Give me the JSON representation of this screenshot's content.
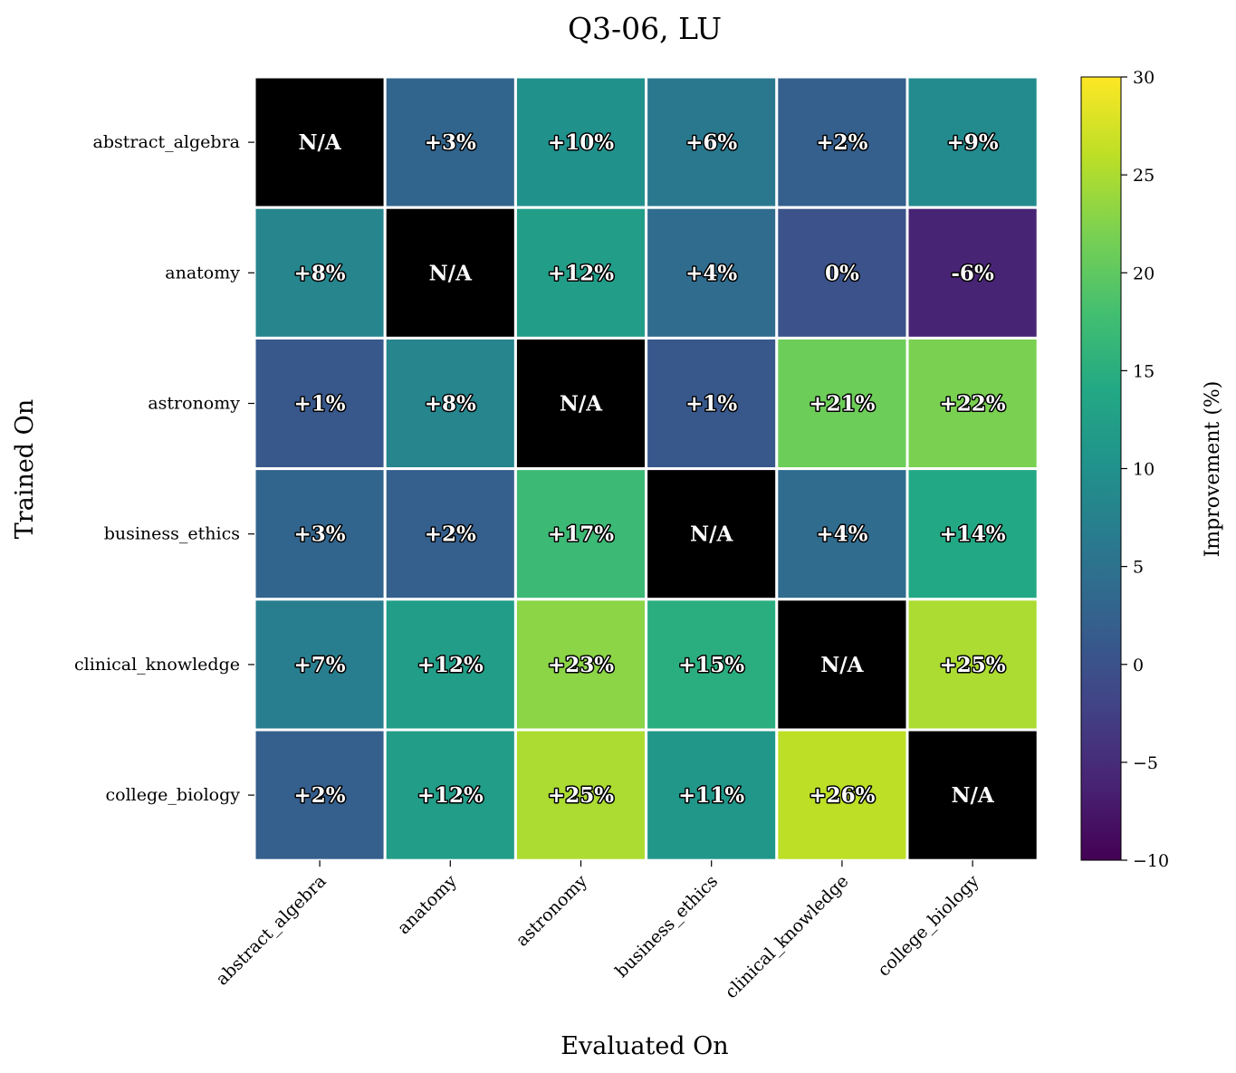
{
  "chart_data": {
    "type": "heatmap",
    "title": "Q3-06, LU",
    "xlabel": "Evaluated On",
    "ylabel": "Trained On",
    "rows": [
      "abstract_algebra",
      "anatomy",
      "astronomy",
      "business_ethics",
      "clinical_knowledge",
      "college_biology"
    ],
    "columns": [
      "abstract_algebra",
      "anatomy",
      "astronomy",
      "business_ethics",
      "clinical_knowledge",
      "college_biology"
    ],
    "values": [
      [
        null,
        3,
        10,
        6,
        2,
        9
      ],
      [
        8,
        null,
        12,
        4,
        0,
        -6
      ],
      [
        1,
        8,
        null,
        1,
        21,
        22
      ],
      [
        3,
        2,
        17,
        null,
        4,
        14
      ],
      [
        7,
        12,
        23,
        15,
        null,
        25
      ],
      [
        2,
        12,
        25,
        11,
        26,
        null
      ]
    ],
    "labels": [
      [
        "N/A",
        "+3%",
        "+10%",
        "+6%",
        "+2%",
        "+9%"
      ],
      [
        "+8%",
        "N/A",
        "+12%",
        "+4%",
        "0%",
        "-6%"
      ],
      [
        "+1%",
        "+8%",
        "N/A",
        "+1%",
        "+21%",
        "+22%"
      ],
      [
        "+3%",
        "+2%",
        "+17%",
        "N/A",
        "+4%",
        "+14%"
      ],
      [
        "+7%",
        "+12%",
        "+23%",
        "+15%",
        "N/A",
        "+25%"
      ],
      [
        "+2%",
        "+12%",
        "+25%",
        "+11%",
        "+26%",
        "N/A"
      ]
    ],
    "missing_color": "#000000",
    "colormap": "viridis",
    "colorbar": {
      "label": "Improvement (%)",
      "range": [
        -10,
        30
      ],
      "ticks": [
        -10,
        -5,
        0,
        5,
        10,
        15,
        20,
        25,
        30
      ],
      "tick_labels": [
        "−10",
        "−5",
        "0",
        "5",
        "10",
        "15",
        "20",
        "25",
        "30"
      ]
    }
  }
}
